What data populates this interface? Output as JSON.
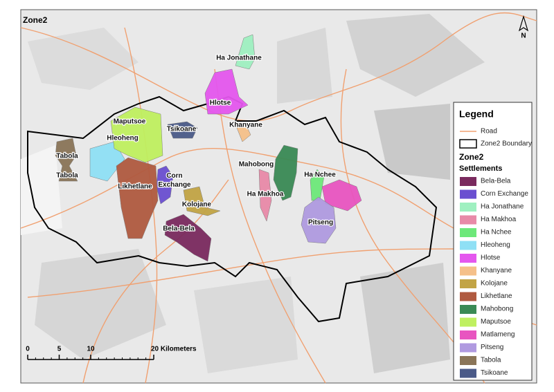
{
  "title": "Zone2",
  "north": "N",
  "legend": {
    "title": "Legend",
    "road": "Road",
    "boundary": "Zone2 Boundary",
    "group": "Zone2",
    "subgroup": "Settlements",
    "items": [
      {
        "name": "Bela-Bela",
        "color": "#7a2a5e"
      },
      {
        "name": "Corn Exchange",
        "color": "#6a4fd0"
      },
      {
        "name": "Ha Jonathane",
        "color": "#9ff0c0"
      },
      {
        "name": "Ha Makhoa",
        "color": "#e88aa8"
      },
      {
        "name": "Ha Nchee",
        "color": "#6de87a"
      },
      {
        "name": "Hleoheng",
        "color": "#8fe0f5"
      },
      {
        "name": "Hlotse",
        "color": "#e457ee"
      },
      {
        "name": "Khanyane",
        "color": "#f5c08a"
      },
      {
        "name": "Kolojane",
        "color": "#c2a445"
      },
      {
        "name": "Likhetlane",
        "color": "#b05a40"
      },
      {
        "name": "Mahobong",
        "color": "#3a8a55"
      },
      {
        "name": "Maputsoe",
        "color": "#bff060"
      },
      {
        "name": "Matlameng",
        "color": "#e855c0"
      },
      {
        "name": "Pitseng",
        "color": "#b09ae0"
      },
      {
        "name": "Tabola",
        "color": "#8a7558"
      },
      {
        "name": "Tsikoane",
        "color": "#4a5a88"
      }
    ]
  },
  "map_labels": [
    "Ha Jonathane",
    "Hlotse",
    "Khanyane",
    "Maputsoe",
    "Tsikoane",
    "Hleoheng",
    "Tabola",
    "Tabola",
    "Mahobong",
    "Ha Nchee",
    "Corn Exchange",
    "Likhetlane",
    "Ha Makhoa",
    "Kolojane",
    "Bela-Bela",
    "Pitseng"
  ],
  "scale": {
    "ticks": [
      0,
      5,
      10,
      {
        "value": 20,
        "label": "20 Kilometers"
      }
    ]
  }
}
